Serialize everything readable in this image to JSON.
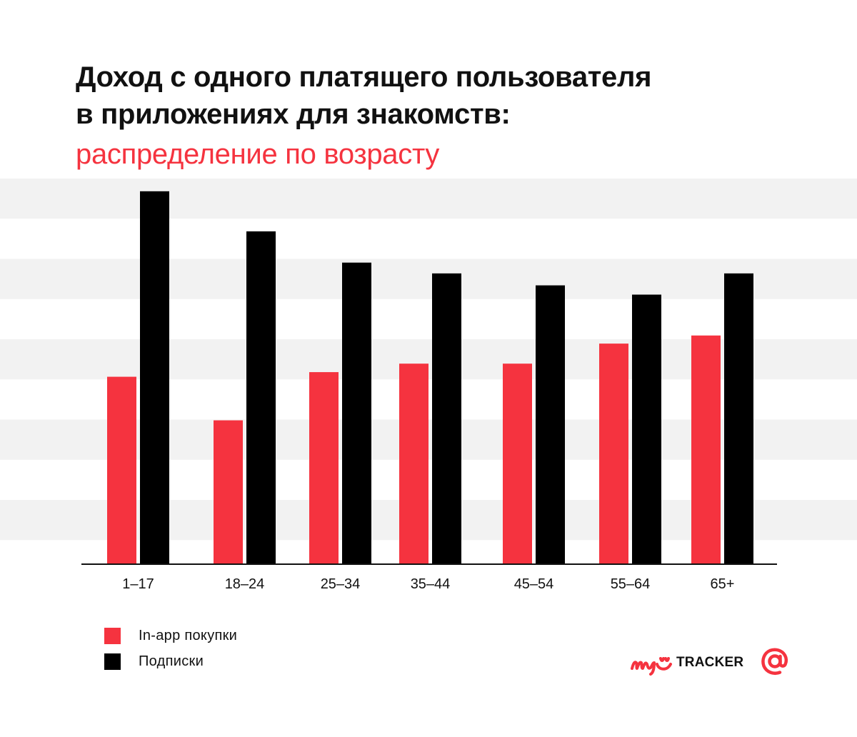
{
  "title": {
    "line1": "Доход с одного платящего пользователя",
    "line2": "в приложениях для знакомств:",
    "subtitle": "распределение по возрасту"
  },
  "colors": {
    "inapp": "#f5333f",
    "subs": "#000000",
    "band": "#f2f2f2",
    "axis": "#111111",
    "accent": "#f5333f"
  },
  "chart_data": {
    "type": "bar",
    "title": "Доход с одного платящего пользователя в приложениях для знакомств: распределение по возрасту",
    "xlabel": "",
    "ylabel": "",
    "ylim": [
      0,
      100
    ],
    "grid": "alternating horizontal bands, no tick labels",
    "categories": [
      "1–17",
      "18–24",
      "25–34",
      "35–44",
      "45–54",
      "55–64",
      "65+"
    ],
    "series": [
      {
        "name": "In-app покупки",
        "color": "#f5333f",
        "values": [
          48.6,
          37.3,
          49.8,
          52.0,
          52.0,
          57.2,
          59.3
        ]
      },
      {
        "name": "Подписки",
        "color": "#000000",
        "values": [
          96.7,
          86.3,
          78.2,
          75.4,
          72.3,
          69.9,
          75.4
        ]
      }
    ]
  },
  "legend": [
    {
      "label": "In-app покупки",
      "color": "#f5333f"
    },
    {
      "label": "Подписки",
      "color": "#000000"
    }
  ],
  "branding": {
    "tracker_text": "TRACKER",
    "logo_my": "myTracker wordmark",
    "logo_at": "at-sign-icon"
  }
}
